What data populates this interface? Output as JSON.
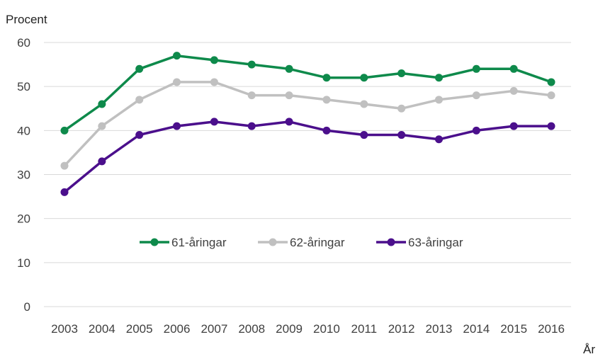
{
  "chart_data": {
    "type": "line",
    "ylabel": "Procent",
    "xlabel": "År",
    "ylim": [
      0,
      60
    ],
    "yticks": [
      0,
      10,
      20,
      30,
      40,
      50,
      60
    ],
    "grid": true,
    "legend_position": "center",
    "categories": [
      "2003",
      "2004",
      "2005",
      "2006",
      "2007",
      "2008",
      "2009",
      "2010",
      "2011",
      "2012",
      "2013",
      "2014",
      "2015",
      "2016"
    ],
    "series": [
      {
        "name": "61-åringar",
        "color": "#0e8a4b",
        "values": [
          40,
          46,
          54,
          57,
          56,
          55,
          54,
          52,
          52,
          53,
          52,
          54,
          54,
          51
        ]
      },
      {
        "name": "62-åringar",
        "color": "#c0c0c0",
        "values": [
          32,
          41,
          47,
          51,
          51,
          48,
          48,
          47,
          46,
          45,
          47,
          48,
          49,
          48
        ]
      },
      {
        "name": "63-åringar",
        "color": "#4b0f8c",
        "values": [
          26,
          33,
          39,
          41,
          42,
          41,
          42,
          40,
          39,
          39,
          38,
          40,
          41,
          41
        ]
      }
    ]
  }
}
